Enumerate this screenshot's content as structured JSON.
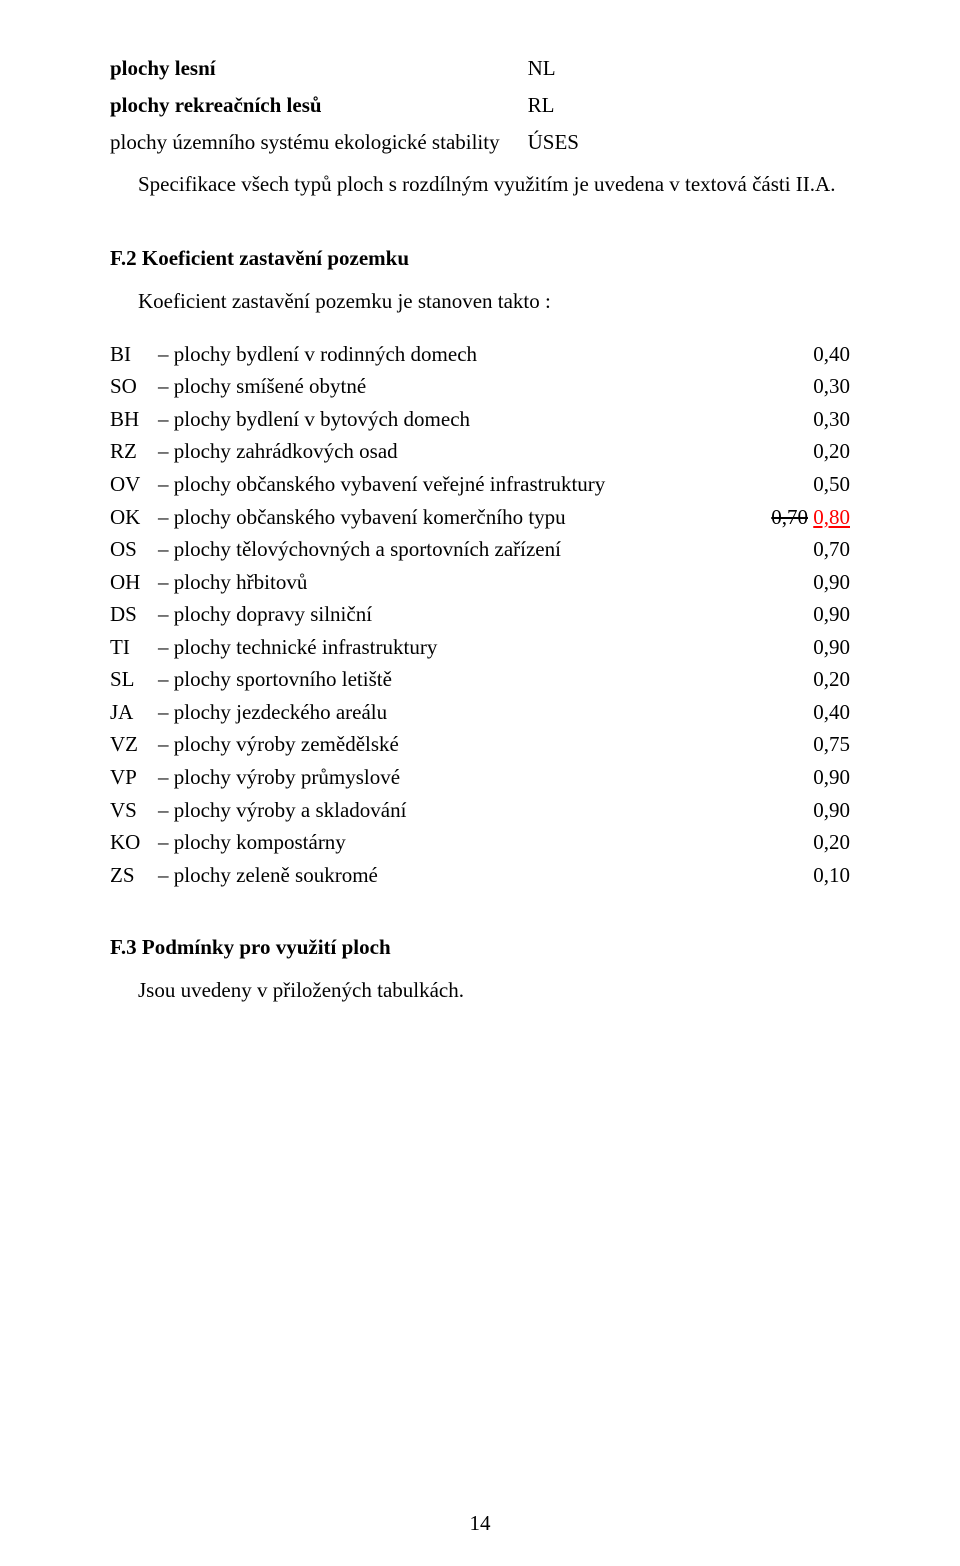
{
  "intro": {
    "rows": [
      {
        "left": "plochy lesní",
        "right": "NL",
        "bold": true
      },
      {
        "left": "plochy rekreačních lesů",
        "right": "RL",
        "bold": true
      },
      {
        "left": "plochy územního systému ekologické stability",
        "right": "ÚSES",
        "bold": false
      }
    ],
    "sentence": "Specifikace všech typů ploch s rozdílným využitím je uvedena v textová části II.A."
  },
  "section_f2": {
    "heading": "F.2 Koeficient zastavění pozemku",
    "sub_intro": "Koeficient zastavění pozemku je stanoven takto :",
    "rows": [
      {
        "code": "BI",
        "desc": "– plochy bydlení v rodinných domech",
        "value": "0,40"
      },
      {
        "code": "SO",
        "desc": "– plochy smíšené obytné",
        "value": "0,30"
      },
      {
        "code": "BH",
        "desc": "– plochy bydlení v bytových domech",
        "value": "0,30"
      },
      {
        "code": "RZ",
        "desc": "– plochy zahrádkových osad",
        "value": "0,20"
      },
      {
        "code": "OV",
        "desc": "– plochy občanského vybavení veřejné infrastruktury",
        "value": "0,50"
      },
      {
        "code": "OK",
        "desc": "– plochy občanského vybavení komerčního typu",
        "value_strike": "0,70",
        "value_new": "0,80",
        "new_color": "#ff0000"
      },
      {
        "code": "OS",
        "desc": "– plochy tělovýchovných a sportovních zařízení",
        "value": "0,70"
      },
      {
        "code": "OH",
        "desc": "– plochy hřbitovů",
        "value": "0,90"
      },
      {
        "code": "DS",
        "desc": "– plochy dopravy silniční",
        "value": "0,90"
      },
      {
        "code": "TI",
        "desc": "– plochy technické infrastruktury",
        "value": "0,90"
      },
      {
        "code": "SL",
        "desc": "– plochy sportovního letiště",
        "value": "0,20"
      },
      {
        "code": "JA",
        "desc": "– plochy jezdeckého areálu",
        "value": "0,40"
      },
      {
        "code": "VZ",
        "desc": "– plochy výroby zemědělské",
        "value": "0,75"
      },
      {
        "code": "VP",
        "desc": "– plochy výroby průmyslové",
        "value": "0,90"
      },
      {
        "code": "VS",
        "desc": "– plochy výroby a skladování",
        "value": "0,90"
      },
      {
        "code": "KO",
        "desc": "– plochy kompostárny",
        "value": "0,20"
      },
      {
        "code": "ZS",
        "desc": "– plochy zeleně soukromé",
        "value": "0,10"
      }
    ]
  },
  "section_f3": {
    "heading": "F.3 Podmínky pro využití ploch",
    "body": "Jsou uvedeny v přiložených tabulkách."
  },
  "page_number": "14"
}
